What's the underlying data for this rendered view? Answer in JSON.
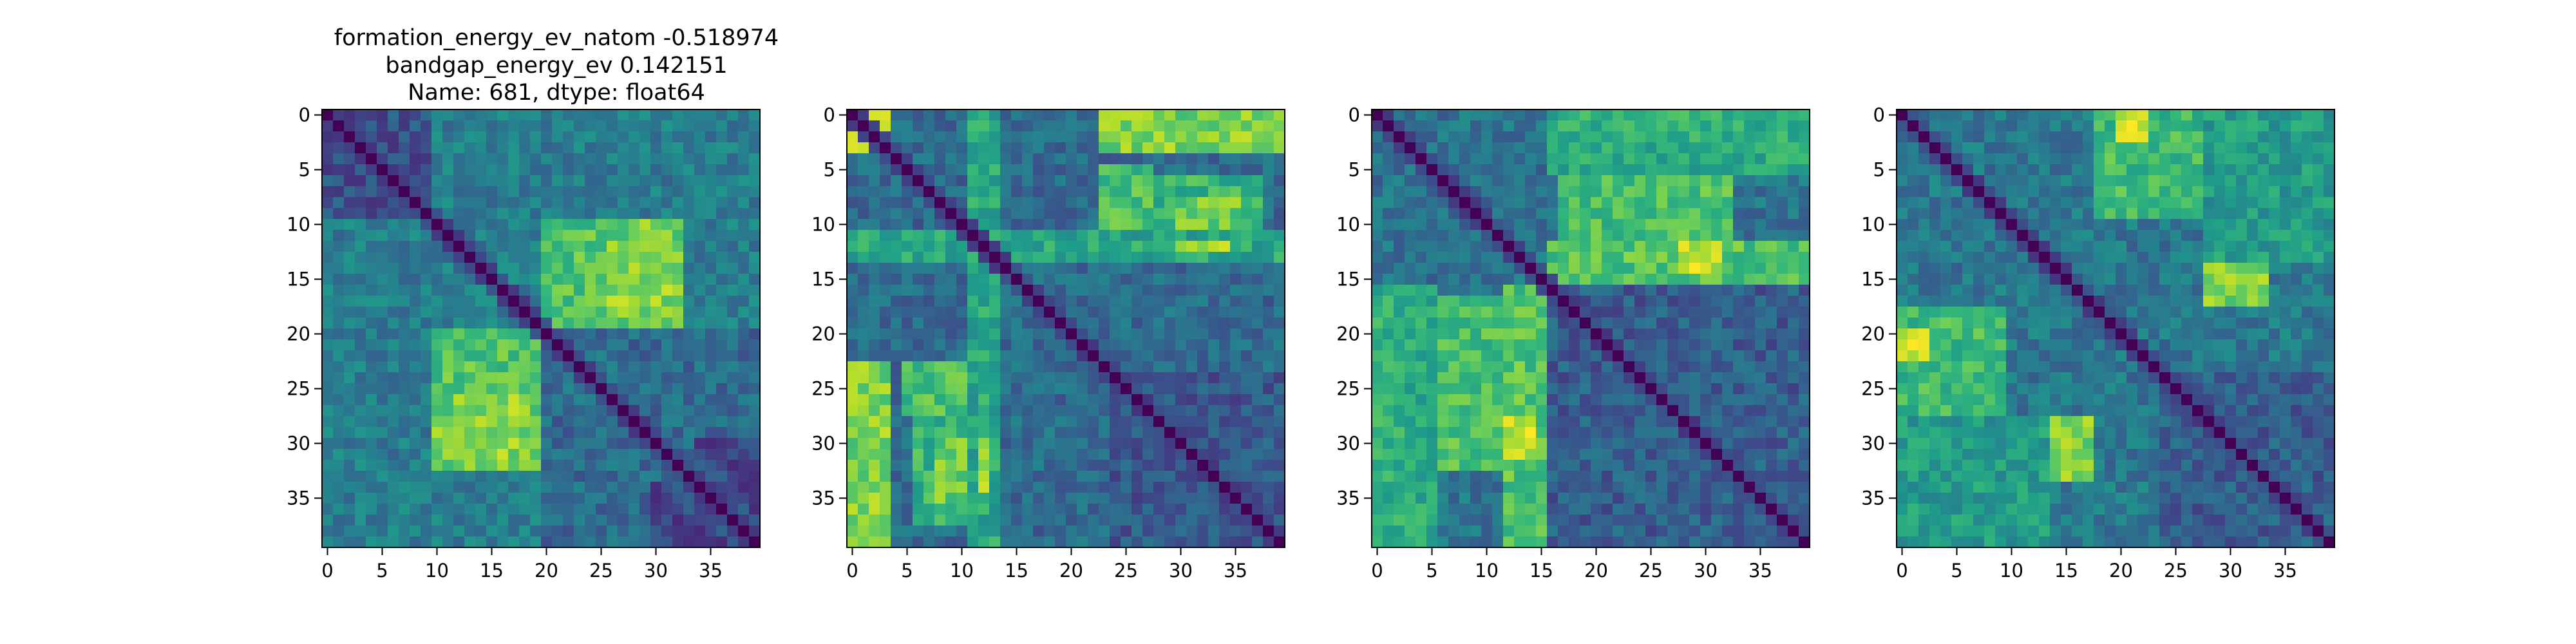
{
  "figure": {
    "title_lines": [
      "formation_energy_ev_natom   -0.518974",
      "bandgap_energy_ev           0.142151",
      "Name: 681, dtype: float64"
    ]
  },
  "chart_data": [
    {
      "type": "heatmap",
      "title": "",
      "colormap": "viridis",
      "matrix_size": 40,
      "x_ticks": [
        0,
        5,
        10,
        15,
        20,
        25,
        30,
        35
      ],
      "y_ticks": [
        0,
        5,
        10,
        15,
        20,
        25,
        30,
        35
      ],
      "diagonal_value": 0.0,
      "base_value": 0.42,
      "blocks": [
        {
          "r0": 10,
          "r1": 20,
          "c0": 20,
          "c1": 33,
          "value": 0.78
        },
        {
          "r0": 14,
          "r1": 18,
          "c0": 27,
          "c1": 32,
          "value": 0.88
        },
        {
          "r0": 20,
          "r1": 26,
          "c0": 10,
          "c1": 20,
          "value": 0.72
        },
        {
          "r0": 26,
          "r1": 33,
          "c0": 14,
          "c1": 18,
          "value": 0.82
        },
        {
          "r0": 0,
          "r1": 10,
          "c0": 0,
          "c1": 10,
          "value": 0.25
        },
        {
          "r0": 20,
          "r1": 40,
          "c0": 20,
          "c1": 40,
          "value": 0.35
        },
        {
          "r0": 34,
          "r1": 40,
          "c0": 30,
          "c1": 40,
          "value": 0.22
        }
      ]
    },
    {
      "type": "heatmap",
      "title": "",
      "colormap": "viridis",
      "matrix_size": 40,
      "x_ticks": [
        0,
        5,
        10,
        15,
        20,
        25,
        30,
        35
      ],
      "y_ticks": [
        0,
        5,
        10,
        15,
        20,
        25,
        30,
        35
      ],
      "diagonal_value": 0.0,
      "base_value": 0.35,
      "blocks": [
        {
          "r0": 0,
          "r1": 4,
          "c0": 23,
          "c1": 40,
          "value": 0.82
        },
        {
          "r0": 23,
          "r1": 40,
          "c0": 0,
          "c1": 4,
          "value": 0.8
        },
        {
          "r0": 0,
          "r1": 4,
          "c0": 0,
          "c1": 4,
          "value": 0.95
        },
        {
          "r0": 6,
          "r1": 12,
          "c0": 24,
          "c1": 38,
          "value": 0.65
        },
        {
          "r0": 23,
          "r1": 28,
          "c0": 5,
          "c1": 12,
          "value": 0.7
        },
        {
          "r0": 30,
          "r1": 36,
          "c0": 8,
          "c1": 12,
          "value": 0.78
        },
        {
          "r0": 11,
          "r1": 14,
          "c0": 0,
          "c1": 40,
          "value": 0.6
        },
        {
          "r0": 0,
          "r1": 40,
          "c0": 11,
          "c1": 14,
          "value": 0.6
        },
        {
          "r0": 12,
          "r1": 13,
          "c0": 30,
          "c1": 35,
          "value": 0.9
        },
        {
          "r0": 24,
          "r1": 40,
          "c0": 24,
          "c1": 40,
          "value": 0.28
        }
      ]
    },
    {
      "type": "heatmap",
      "title": "",
      "colormap": "viridis",
      "matrix_size": 40,
      "x_ticks": [
        0,
        5,
        10,
        15,
        20,
        25,
        30,
        35
      ],
      "y_ticks": [
        0,
        5,
        10,
        15,
        20,
        25,
        30,
        35
      ],
      "diagonal_value": 0.0,
      "base_value": 0.38,
      "blocks": [
        {
          "r0": 0,
          "r1": 12,
          "c0": 17,
          "c1": 33,
          "value": 0.7
        },
        {
          "r0": 0,
          "r1": 4,
          "c0": 17,
          "c1": 21,
          "value": 0.85
        },
        {
          "r0": 12,
          "r1": 16,
          "c0": 17,
          "c1": 33,
          "value": 0.72
        },
        {
          "r0": 12,
          "r1": 15,
          "c0": 28,
          "c1": 31,
          "value": 0.92
        },
        {
          "r0": 16,
          "r1": 40,
          "c0": 0,
          "c1": 6,
          "value": 0.62
        },
        {
          "r0": 16,
          "r1": 40,
          "c0": 12,
          "c1": 17,
          "value": 0.72
        },
        {
          "r0": 28,
          "r1": 32,
          "c0": 12,
          "c1": 15,
          "value": 0.92
        },
        {
          "r0": 16,
          "r1": 40,
          "c0": 17,
          "c1": 40,
          "value": 0.3
        }
      ]
    },
    {
      "type": "heatmap",
      "title": "",
      "colormap": "viridis",
      "matrix_size": 40,
      "x_ticks": [
        0,
        5,
        10,
        15,
        20,
        25,
        30,
        35
      ],
      "y_ticks": [
        0,
        5,
        10,
        15,
        20,
        25,
        30,
        35
      ],
      "diagonal_value": 0.0,
      "base_value": 0.4,
      "blocks": [
        {
          "r0": 0,
          "r1": 10,
          "c0": 18,
          "c1": 35,
          "value": 0.68
        },
        {
          "r0": 0,
          "r1": 3,
          "c0": 21,
          "c1": 24,
          "value": 0.95
        },
        {
          "r0": 14,
          "r1": 18,
          "c0": 28,
          "c1": 33,
          "value": 0.75
        },
        {
          "r0": 18,
          "r1": 24,
          "c0": 0,
          "c1": 10,
          "value": 0.68
        },
        {
          "r0": 20,
          "r1": 23,
          "c0": 0,
          "c1": 3,
          "value": 0.95
        },
        {
          "r0": 28,
          "r1": 34,
          "c0": 14,
          "c1": 18,
          "value": 0.8
        },
        {
          "r0": 28,
          "r1": 40,
          "c0": 0,
          "c1": 14,
          "value": 0.55
        },
        {
          "r0": 24,
          "r1": 40,
          "c0": 24,
          "c1": 40,
          "value": 0.3
        }
      ]
    }
  ]
}
